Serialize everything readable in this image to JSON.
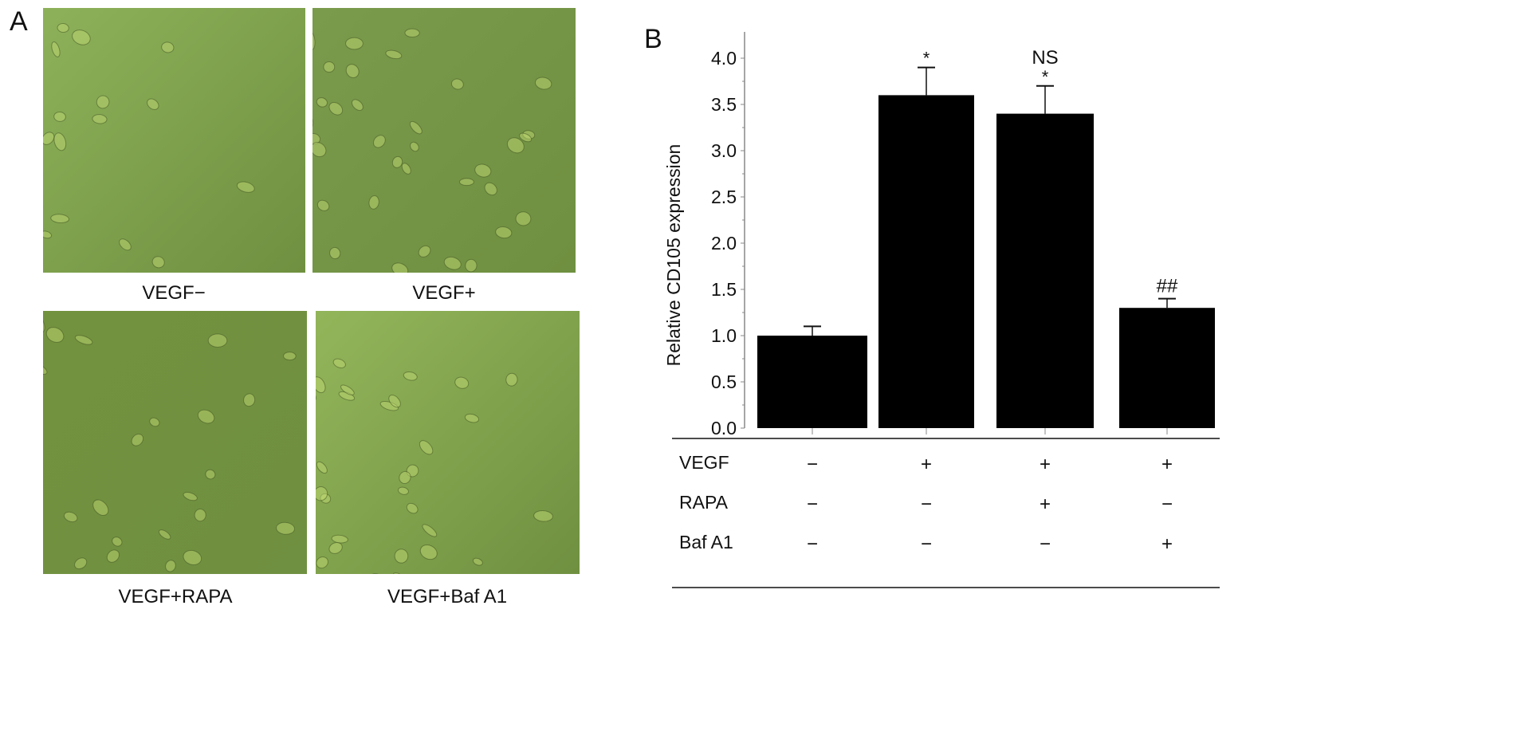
{
  "panel_a": {
    "label": "A",
    "images": [
      {
        "caption": "VEGF−",
        "tone": "#8db15a"
      },
      {
        "caption": "VEGF+",
        "tone": "#7a9a4c"
      },
      {
        "caption": "VEGF+RAPA",
        "tone": "#73923f"
      },
      {
        "caption": "VEGF+Baf A1",
        "tone": "#93b55a"
      }
    ]
  },
  "chart_data": {
    "type": "bar",
    "panel_label": "B",
    "title": "",
    "xlabel": "",
    "ylabel": "Relative CD105 expression",
    "ylim": [
      0,
      4.0
    ],
    "yticks": [
      "0.0",
      "0.5",
      "1.0",
      "1.5",
      "2.0",
      "2.5",
      "3.0",
      "3.5",
      "4.0"
    ],
    "categories": [
      "VEGF−",
      "VEGF+",
      "VEGF+RAPA",
      "VEGF+Baf A1"
    ],
    "values": [
      1.0,
      3.6,
      3.4,
      1.3
    ],
    "errors": [
      0.1,
      0.3,
      0.3,
      0.1
    ],
    "annotations": [
      "",
      "*",
      "*",
      "##"
    ],
    "extra_annotation": {
      "bar_index": 2,
      "text": "NS"
    },
    "bar_color": "#000000",
    "grid": false,
    "treatment_table": {
      "rows": [
        {
          "label": "VEGF",
          "values": [
            "−",
            "+",
            "+",
            "+"
          ]
        },
        {
          "label": "RAPA",
          "values": [
            "−",
            "−",
            "+",
            "−"
          ]
        },
        {
          "label": "Baf A1",
          "values": [
            "−",
            "−",
            "−",
            "+"
          ]
        }
      ]
    }
  }
}
